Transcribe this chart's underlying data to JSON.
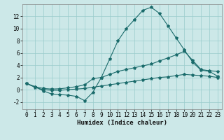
{
  "xlabel": "Humidex (Indice chaleur)",
  "bg_color": "#cce8e8",
  "grid_color": "#99cccc",
  "line_color": "#1a6b6b",
  "xlim": [
    -0.5,
    23.5
  ],
  "ylim": [
    -3.2,
    14.0
  ],
  "xticks": [
    0,
    1,
    2,
    3,
    4,
    5,
    6,
    7,
    8,
    9,
    10,
    11,
    12,
    13,
    14,
    15,
    16,
    17,
    18,
    19,
    20,
    21,
    22,
    23
  ],
  "yticks": [
    -2,
    0,
    2,
    4,
    6,
    8,
    10,
    12
  ],
  "line1_x": [
    0,
    1,
    2,
    3,
    4,
    5,
    6,
    7,
    8,
    9,
    10,
    11,
    12,
    13,
    14,
    15,
    16,
    17,
    18,
    19,
    20,
    21,
    22,
    23
  ],
  "line1_y": [
    1.0,
    0.5,
    -0.2,
    -0.7,
    -0.8,
    -0.9,
    -1.1,
    -1.8,
    -0.4,
    2.0,
    5.0,
    8.0,
    10.0,
    11.5,
    13.0,
    13.5,
    12.5,
    10.5,
    8.5,
    6.5,
    4.5,
    3.2,
    3.0,
    2.2
  ],
  "line2_x": [
    0,
    1,
    2,
    3,
    4,
    5,
    6,
    7,
    8,
    9,
    10,
    11,
    12,
    13,
    14,
    15,
    16,
    17,
    18,
    19,
    20,
    21,
    22,
    23
  ],
  "line2_y": [
    1.0,
    0.5,
    0.2,
    0.1,
    0.15,
    0.3,
    0.5,
    0.8,
    1.8,
    2.0,
    2.5,
    3.0,
    3.3,
    3.6,
    3.9,
    4.2,
    4.7,
    5.2,
    5.7,
    6.3,
    4.8,
    3.3,
    3.1,
    3.0
  ],
  "line3_x": [
    0,
    1,
    2,
    3,
    4,
    5,
    6,
    7,
    8,
    9,
    10,
    11,
    12,
    13,
    14,
    15,
    16,
    17,
    18,
    19,
    20,
    21,
    22,
    23
  ],
  "line3_y": [
    1.0,
    0.4,
    0.0,
    -0.1,
    -0.1,
    0.0,
    0.1,
    0.2,
    0.4,
    0.6,
    0.8,
    1.0,
    1.2,
    1.4,
    1.6,
    1.8,
    2.0,
    2.1,
    2.3,
    2.5,
    2.4,
    2.3,
    2.2,
    2.0
  ],
  "xlabel_fontsize": 6.5,
  "tick_fontsize": 5.5
}
